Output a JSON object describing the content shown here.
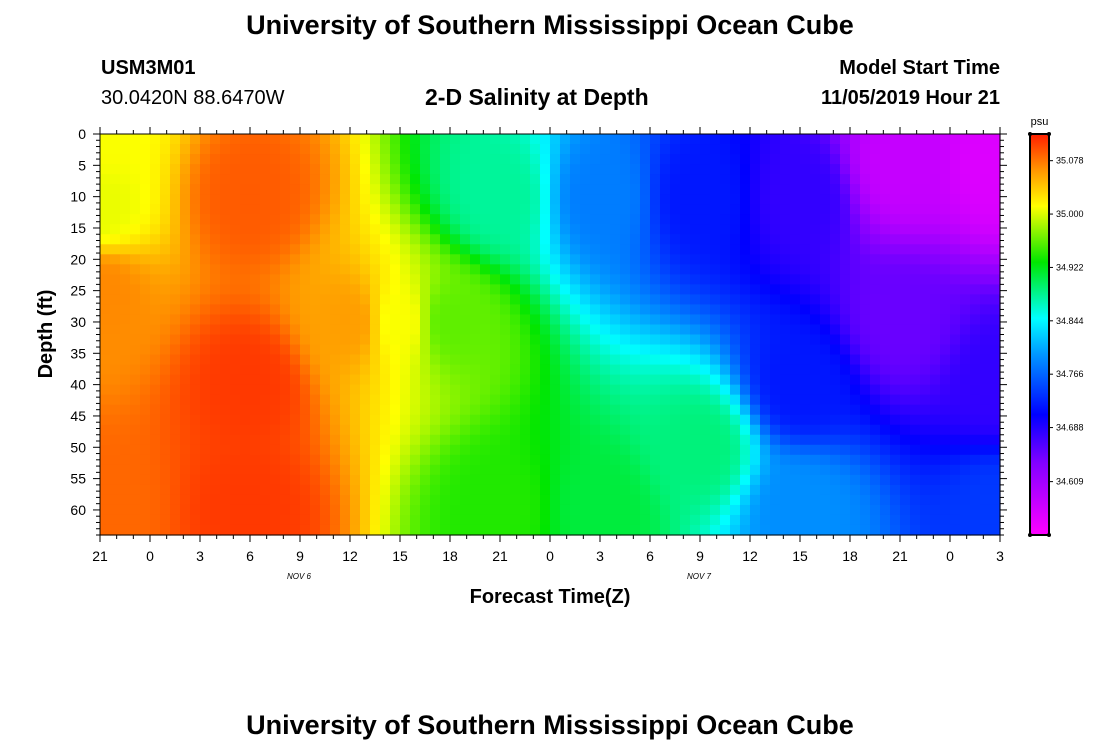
{
  "header": {
    "title": "University of Southern Mississippi Ocean Cube",
    "station_id": "USM3M01",
    "coordinates": "30.0420N 88.6470W",
    "subtitle": "2-D Salinity at Depth",
    "model_start_label": "Model Start Time",
    "model_start_value": "11/05/2019 Hour 21"
  },
  "footer": {
    "title": "University of Southern Mississippi Ocean Cube"
  },
  "chart_data": {
    "type": "heatmap",
    "title": "2-D Salinity at Depth",
    "xlabel": "Forecast Time(Z)",
    "ylabel": "Depth (ft)",
    "x_tick_labels": [
      "21",
      "0",
      "3",
      "6",
      "9",
      "12",
      "15",
      "18",
      "21",
      "0",
      "3",
      "6",
      "9",
      "12",
      "15",
      "18",
      "21",
      "0",
      "3"
    ],
    "x_range_hours": [
      0,
      54
    ],
    "date_labels": [
      {
        "text": "NOV 6",
        "hour": 15
      },
      {
        "text": "NOV 7",
        "hour": 39
      }
    ],
    "y_ticks": [
      0,
      5,
      10,
      15,
      20,
      25,
      30,
      35,
      40,
      45,
      50,
      55,
      60
    ],
    "ylim": [
      0,
      64
    ],
    "colorbar": {
      "unit": "psu",
      "range": [
        34.531,
        35.117
      ],
      "tick_values": [
        35.078,
        35.0,
        34.922,
        34.844,
        34.766,
        34.688,
        34.609
      ],
      "tick_labels": [
        "35.078",
        "35.000",
        "34.922",
        "34.844",
        "34.766",
        "34.688",
        "34.609"
      ]
    },
    "salinity_points": [
      {
        "hour": 0,
        "depth": 0,
        "psu": 35.01
      },
      {
        "hour": 0,
        "depth": 12,
        "psu": 35.005
      },
      {
        "hour": 0,
        "depth": 25,
        "psu": 35.07
      },
      {
        "hour": 0,
        "depth": 60,
        "psu": 35.085
      },
      {
        "hour": 9,
        "depth": 10,
        "psu": 35.09
      },
      {
        "hour": 9,
        "depth": 40,
        "psu": 35.105
      },
      {
        "hour": 9,
        "depth": 60,
        "psu": 35.105
      },
      {
        "hour": 15,
        "depth": 30,
        "psu": 35.06
      },
      {
        "hour": 18,
        "depth": 30,
        "psu": 35.01
      },
      {
        "hour": 21,
        "depth": 30,
        "psu": 34.96
      },
      {
        "hour": 24,
        "depth": 10,
        "psu": 34.88
      },
      {
        "hour": 24,
        "depth": 60,
        "psu": 34.94
      },
      {
        "hour": 30,
        "depth": 10,
        "psu": 34.78
      },
      {
        "hour": 30,
        "depth": 60,
        "psu": 34.91
      },
      {
        "hour": 36,
        "depth": 10,
        "psu": 34.72
      },
      {
        "hour": 36,
        "depth": 50,
        "psu": 34.89
      },
      {
        "hour": 42,
        "depth": 10,
        "psu": 34.68
      },
      {
        "hour": 42,
        "depth": 40,
        "psu": 34.72
      },
      {
        "hour": 42,
        "depth": 60,
        "psu": 34.79
      },
      {
        "hour": 48,
        "depth": 5,
        "psu": 34.58
      },
      {
        "hour": 48,
        "depth": 30,
        "psu": 34.65
      },
      {
        "hour": 54,
        "depth": 5,
        "psu": 34.56
      },
      {
        "hour": 54,
        "depth": 40,
        "psu": 34.68
      },
      {
        "hour": 54,
        "depth": 60,
        "psu": 34.74
      }
    ]
  }
}
